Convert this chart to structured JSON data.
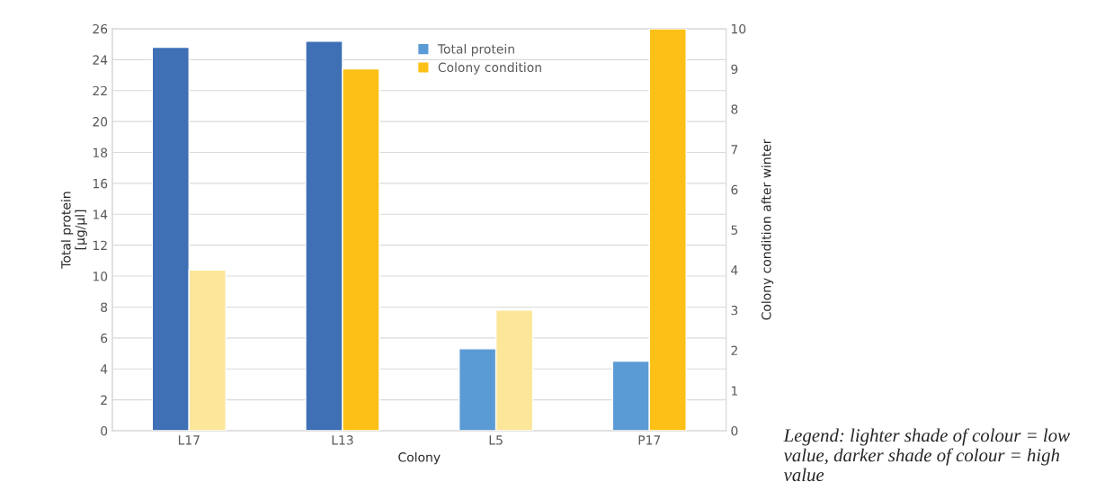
{
  "chart_data": {
    "type": "bar",
    "categories": [
      "L17",
      "L13",
      "L5",
      "P17"
    ],
    "xlabel": "Colony",
    "ylabel": "Total protein\n[µg/µl]",
    "y2label": "Colony condition after winter",
    "series": [
      {
        "name": "Total protein",
        "color": "#5b9bd5",
        "colors": [
          "#3f6fb5",
          "#3f6fb5",
          "#5b9bd5",
          "#5b9bd5"
        ],
        "values": [
          24.8,
          25.2,
          5.3,
          4.5
        ]
      },
      {
        "name": "Colony condition",
        "axis": "y2",
        "color": "#fcc016",
        "colors": [
          "#fce699",
          "#fcc016",
          "#fce699",
          "#fcc016"
        ],
        "values": [
          4,
          9,
          3,
          10
        ]
      }
    ],
    "ylim": [
      0,
      26
    ],
    "yticks": [
      0,
      2,
      4,
      6,
      8,
      10,
      12,
      14,
      16,
      18,
      20,
      22,
      24,
      26
    ],
    "y2lim": [
      0,
      10
    ],
    "y2ticks": [
      0,
      1,
      2,
      3,
      4,
      5,
      6,
      7,
      8,
      9,
      10
    ],
    "grid": "y",
    "legend": "top",
    "annotations": [
      "Legend: lighter shade of colour = low value, darker shade of colour = high value"
    ]
  }
}
